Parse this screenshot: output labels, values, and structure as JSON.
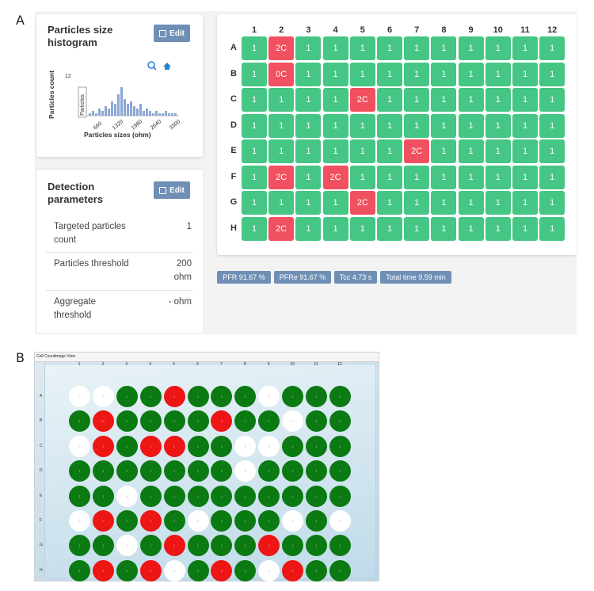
{
  "panel_labels": {
    "a": "A",
    "b": "B"
  },
  "histogram_card": {
    "title": "Particles size histogram",
    "edit_label": "Edit",
    "y_axis_label": "Particles count",
    "y_top_tick": "12",
    "inner_label": "Particles",
    "x_ticks": [
      "660",
      "1320",
      "1980",
      "2640",
      "3300"
    ],
    "x_axis_label": "Particles sizes (ohm)",
    "bars": [
      1,
      2,
      1,
      3,
      2,
      4,
      3,
      6,
      5,
      9,
      12,
      7,
      5,
      6,
      4,
      3,
      5,
      2,
      3,
      2,
      1,
      2,
      1,
      1,
      2,
      1,
      1,
      1
    ]
  },
  "detection_card": {
    "title": "Detection parameters",
    "edit_label": "Edit",
    "rows": [
      {
        "label": "Targeted particles count",
        "value": "1"
      },
      {
        "label": "Particles threshold",
        "value": "200 ohm"
      },
      {
        "label": "Aggregate threshold",
        "value": "- ohm"
      }
    ]
  },
  "plate_a": {
    "columns": [
      "1",
      "2",
      "3",
      "4",
      "5",
      "6",
      "7",
      "8",
      "9",
      "10",
      "11",
      "12"
    ],
    "rows": [
      {
        "label": "A",
        "cells": [
          "1",
          "2C",
          "1",
          "1",
          "1",
          "1",
          "1",
          "1",
          "1",
          "1",
          "1",
          "1"
        ]
      },
      {
        "label": "B",
        "cells": [
          "1",
          "0C",
          "1",
          "1",
          "1",
          "1",
          "1",
          "1",
          "1",
          "1",
          "1",
          "1"
        ]
      },
      {
        "label": "C",
        "cells": [
          "1",
          "1",
          "1",
          "1",
          "2C",
          "1",
          "1",
          "1",
          "1",
          "1",
          "1",
          "1"
        ]
      },
      {
        "label": "D",
        "cells": [
          "1",
          "1",
          "1",
          "1",
          "1",
          "1",
          "1",
          "1",
          "1",
          "1",
          "1",
          "1"
        ]
      },
      {
        "label": "E",
        "cells": [
          "1",
          "1",
          "1",
          "1",
          "1",
          "1",
          "2C",
          "1",
          "1",
          "1",
          "1",
          "1"
        ]
      },
      {
        "label": "F",
        "cells": [
          "1",
          "2C",
          "1",
          "2C",
          "1",
          "1",
          "1",
          "1",
          "1",
          "1",
          "1",
          "1"
        ]
      },
      {
        "label": "G",
        "cells": [
          "1",
          "1",
          "1",
          "1",
          "2C",
          "1",
          "1",
          "1",
          "1",
          "1",
          "1",
          "1"
        ]
      },
      {
        "label": "H",
        "cells": [
          "1",
          "2C",
          "1",
          "1",
          "1",
          "1",
          "1",
          "1",
          "1",
          "1",
          "1",
          "1"
        ]
      }
    ],
    "colors": {
      "ok": "#45c685",
      "flag": "#f0505f"
    }
  },
  "stats": [
    "PFR 91.67 %",
    "PFRe 91.67 %",
    "Tcc 4.73 s",
    "Total time 9.59 min"
  ],
  "panel_b": {
    "tabs": [
      "Cell Count",
      "Image View"
    ],
    "columns": [
      "1",
      "2",
      "3",
      "4",
      "5",
      "6",
      "7",
      "8",
      "9",
      "10",
      "11",
      "12"
    ],
    "rows": [
      {
        "label": "A",
        "wells": [
          "w",
          "w",
          "g",
          "g",
          "r",
          "g",
          "g",
          "g",
          "w",
          "g",
          "g",
          "g"
        ],
        "values": [
          "0",
          "0",
          "1",
          "1",
          "2",
          "1",
          "1",
          "1",
          "0",
          "1",
          "1",
          "1"
        ]
      },
      {
        "label": "B",
        "wells": [
          "g",
          "r",
          "g",
          "g",
          "g",
          "g",
          "r",
          "g",
          "g",
          "w",
          "g",
          "g"
        ],
        "values": [
          "1",
          "0C",
          "1",
          "1",
          "1",
          "1",
          "2",
          "1",
          "1",
          "0",
          "1",
          "1"
        ]
      },
      {
        "label": "C",
        "wells": [
          "w",
          "r",
          "g",
          "r",
          "r",
          "g",
          "g",
          "w",
          "w",
          "g",
          "g",
          "g"
        ],
        "values": [
          "0",
          "2",
          "1",
          "2",
          "2",
          "1",
          "1",
          "0",
          "0",
          "1",
          "1",
          "1"
        ]
      },
      {
        "label": "D",
        "wells": [
          "g",
          "g",
          "g",
          "g",
          "g",
          "g",
          "g",
          "w",
          "g",
          "g",
          "g",
          "g"
        ],
        "values": [
          "1",
          "1",
          "1",
          "1",
          "1",
          "1",
          "1",
          "0",
          "1",
          "1",
          "1",
          "1"
        ]
      },
      {
        "label": "E",
        "wells": [
          "g",
          "g",
          "w",
          "g",
          "g",
          "g",
          "g",
          "g",
          "g",
          "g",
          "g",
          "g"
        ],
        "values": [
          "1",
          "1",
          "0",
          "1",
          "1",
          "1",
          "1",
          "1",
          "1",
          "1",
          "1",
          "1"
        ]
      },
      {
        "label": "F",
        "wells": [
          "w",
          "r",
          "g",
          "r",
          "g",
          "w",
          "g",
          "g",
          "g",
          "w",
          "g",
          "w"
        ],
        "values": [
          "0",
          "2",
          "1",
          "2",
          "1",
          "0",
          "1",
          "1",
          "1",
          "0",
          "1",
          "0"
        ]
      },
      {
        "label": "G",
        "wells": [
          "g",
          "g",
          "w",
          "g",
          "r",
          "g",
          "g",
          "g",
          "r",
          "g",
          "g",
          "g"
        ],
        "values": [
          "1",
          "1",
          "0",
          "1",
          "2",
          "1",
          "1",
          "1",
          "2",
          "1",
          "1",
          "1"
        ]
      },
      {
        "label": "H",
        "wells": [
          "g",
          "r",
          "g",
          "r",
          "w",
          "g",
          "r",
          "g",
          "w",
          "r",
          "g",
          "g"
        ],
        "values": [
          "1",
          "2",
          "1",
          "2",
          "0",
          "1",
          "2",
          "1",
          "0",
          "2",
          "1",
          "1"
        ]
      }
    ],
    "colors": {
      "green": "#0b7a12",
      "red": "#ee1515",
      "white": "#ffffff"
    }
  }
}
